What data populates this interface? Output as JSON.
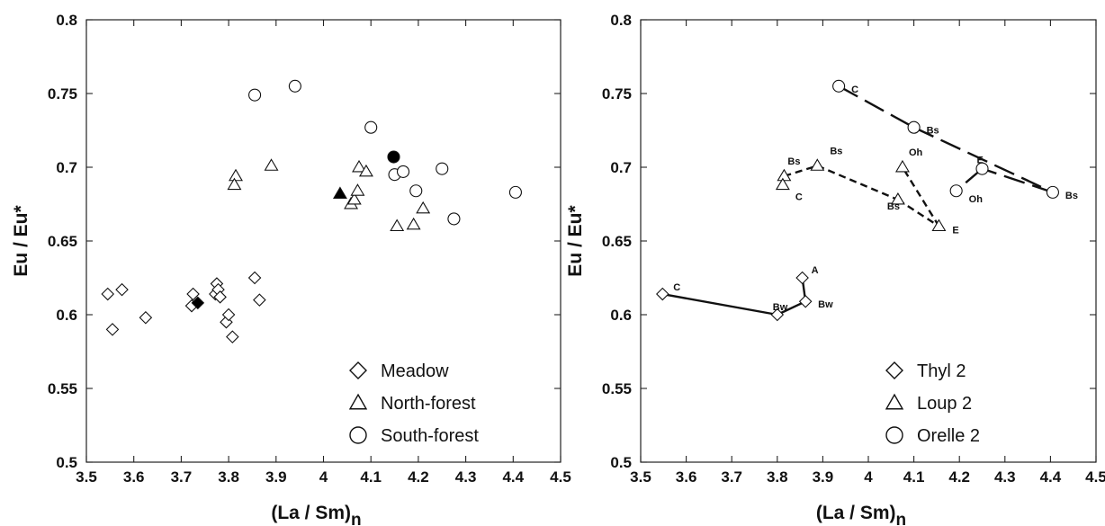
{
  "chart_data": [
    {
      "type": "scatter",
      "xlabel": "(La / Sm)",
      "xlabel_subscript": "n",
      "ylabel": "Eu / Eu*",
      "xlim": [
        3.5,
        4.5
      ],
      "ylim": [
        0.5,
        0.8
      ],
      "xticks": [
        "3.5",
        "3.6",
        "3.7",
        "3.8",
        "3.9",
        "4",
        "4.1",
        "4.2",
        "4.3",
        "4.4",
        "4.5"
      ],
      "yticks": [
        "0.5",
        "0.55",
        "0.6",
        "0.65",
        "0.7",
        "0.75",
        "0.8"
      ],
      "grid": false,
      "legend_position": "bottom-right",
      "series": [
        {
          "name": "Meadow",
          "marker": "diamond",
          "points": [
            {
              "x": 3.545,
              "y": 0.614
            },
            {
              "x": 3.575,
              "y": 0.617
            },
            {
              "x": 3.555,
              "y": 0.59
            },
            {
              "x": 3.625,
              "y": 0.598
            },
            {
              "x": 3.725,
              "y": 0.614
            },
            {
              "x": 3.722,
              "y": 0.606
            },
            {
              "x": 3.772,
              "y": 0.614
            },
            {
              "x": 3.775,
              "y": 0.621
            },
            {
              "x": 3.778,
              "y": 0.617
            },
            {
              "x": 3.782,
              "y": 0.612
            },
            {
              "x": 3.795,
              "y": 0.595
            },
            {
              "x": 3.8,
              "y": 0.6
            },
            {
              "x": 3.808,
              "y": 0.585
            },
            {
              "x": 3.855,
              "y": 0.625
            },
            {
              "x": 3.865,
              "y": 0.61
            }
          ],
          "mean": {
            "x": 3.735,
            "y": 0.608
          }
        },
        {
          "name": "North-forest",
          "marker": "triangle",
          "points": [
            {
              "x": 3.815,
              "y": 0.694
            },
            {
              "x": 3.812,
              "y": 0.688
            },
            {
              "x": 3.89,
              "y": 0.701
            },
            {
              "x": 4.058,
              "y": 0.675
            },
            {
              "x": 4.065,
              "y": 0.678
            },
            {
              "x": 4.072,
              "y": 0.684
            },
            {
              "x": 4.075,
              "y": 0.7
            },
            {
              "x": 4.09,
              "y": 0.697
            },
            {
              "x": 4.155,
              "y": 0.66
            },
            {
              "x": 4.19,
              "y": 0.661
            },
            {
              "x": 4.21,
              "y": 0.672
            }
          ],
          "mean": {
            "x": 4.035,
            "y": 0.682
          }
        },
        {
          "name": "South-forest",
          "marker": "circle",
          "points": [
            {
              "x": 3.855,
              "y": 0.749
            },
            {
              "x": 3.94,
              "y": 0.755
            },
            {
              "x": 4.1,
              "y": 0.727
            },
            {
              "x": 4.15,
              "y": 0.695
            },
            {
              "x": 4.168,
              "y": 0.697
            },
            {
              "x": 4.195,
              "y": 0.684
            },
            {
              "x": 4.25,
              "y": 0.699
            },
            {
              "x": 4.275,
              "y": 0.665
            },
            {
              "x": 4.405,
              "y": 0.683
            }
          ],
          "mean": {
            "x": 4.148,
            "y": 0.707
          }
        }
      ]
    },
    {
      "type": "line",
      "xlabel": "(La / Sm)",
      "xlabel_subscript": "n",
      "ylabel": "Eu / Eu*",
      "xlim": [
        3.5,
        4.5
      ],
      "ylim": [
        0.5,
        0.8
      ],
      "xticks": [
        "3.5",
        "3.6",
        "3.7",
        "3.8",
        "3.9",
        "4",
        "4.1",
        "4.2",
        "4.3",
        "4.4",
        "4.5"
      ],
      "yticks": [
        "0.5",
        "0.55",
        "0.6",
        "0.65",
        "0.7",
        "0.75",
        "0.8"
      ],
      "grid": false,
      "legend_position": "bottom-right",
      "series": [
        {
          "name": "Thyl 2",
          "marker": "diamond",
          "line": "solid",
          "points": [
            {
              "x": 3.548,
              "y": 0.614,
              "label": "C"
            },
            {
              "x": 3.8,
              "y": 0.6,
              "label": "Bw"
            },
            {
              "x": 3.862,
              "y": 0.609,
              "label": "Bw"
            },
            {
              "x": 3.855,
              "y": 0.625,
              "label": "A"
            }
          ]
        },
        {
          "name": "Loup 2",
          "marker": "triangle",
          "line": "dashed",
          "points": [
            {
              "x": 3.815,
              "y": 0.694,
              "label": "Bs"
            },
            {
              "x": 3.812,
              "y": 0.688,
              "label": "C"
            },
            {
              "x": 3.888,
              "y": 0.701,
              "label": "Bs"
            },
            {
              "x": 4.065,
              "y": 0.678,
              "label": "Bs"
            },
            {
              "x": 4.155,
              "y": 0.66,
              "label": "E"
            },
            {
              "x": 4.075,
              "y": 0.7,
              "label": "Oh"
            }
          ],
          "segments": [
            [
              0,
              2
            ],
            [
              2,
              3
            ],
            [
              3,
              4
            ],
            [
              4,
              5
            ]
          ]
        },
        {
          "name": "Orelle 2",
          "marker": "circle",
          "line": "long-dash",
          "points": [
            {
              "x": 3.935,
              "y": 0.755,
              "label": "C"
            },
            {
              "x": 4.1,
              "y": 0.727,
              "label": "Bs"
            },
            {
              "x": 4.405,
              "y": 0.683,
              "label": "Bs"
            },
            {
              "x": 4.25,
              "y": 0.699,
              "label": "E"
            },
            {
              "x": 4.193,
              "y": 0.684,
              "label": "Oh"
            }
          ],
          "segments": [
            [
              0,
              1
            ],
            [
              1,
              2
            ],
            [
              2,
              3
            ],
            [
              3,
              4
            ]
          ]
        }
      ]
    }
  ]
}
